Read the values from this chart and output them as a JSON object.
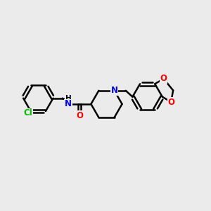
{
  "bg_color": "#ebebeb",
  "bond_color": "#000000",
  "bond_width": 1.8,
  "atom_colors": {
    "N": "#0000ff",
    "O": "#ff0000",
    "Cl": "#00bb00",
    "C": "#000000"
  },
  "font_size": 8.5,
  "figsize": [
    3.0,
    3.0
  ],
  "dpi": 100
}
